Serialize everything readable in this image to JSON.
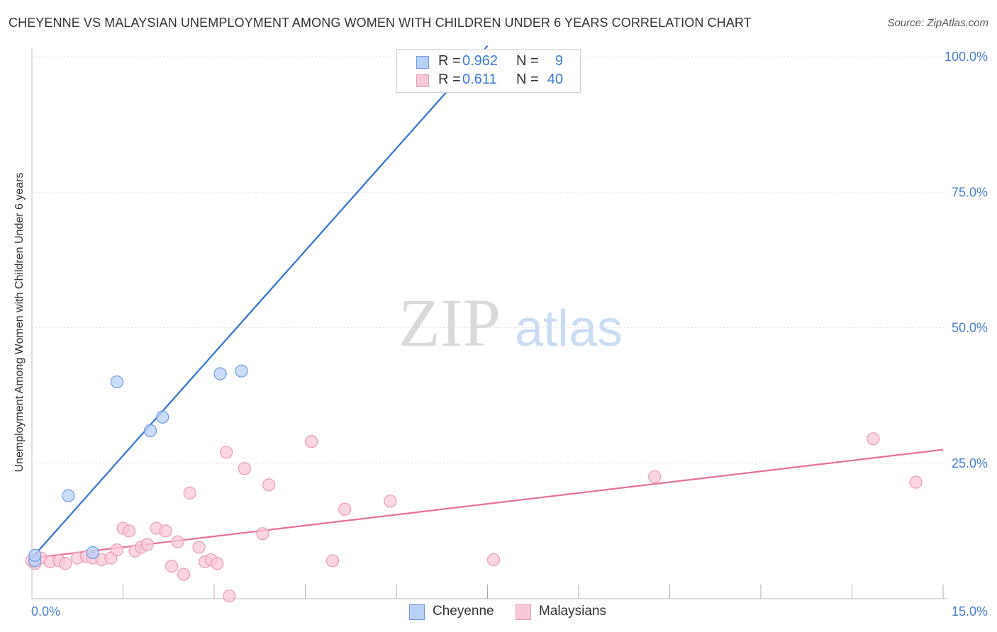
{
  "title": "CHEYENNE VS MALAYSIAN UNEMPLOYMENT AMONG WOMEN WITH CHILDREN UNDER 6 YEARS CORRELATION CHART",
  "source": "Source: ZipAtlas.com",
  "watermark": {
    "zip": "ZIP",
    "atlas": "atlas"
  },
  "colors": {
    "cheyenne_fill": "#b9d1f5",
    "cheyenne_stroke": "#6f9be0",
    "cheyenne_line": "#3173d3",
    "malaysian_fill": "#f8c8d7",
    "malaysian_stroke": "#e89bb4",
    "malaysian_line": "#e7709a",
    "axis_label": "#4a7fd0",
    "grid": "#dddddd"
  },
  "legend_top": {
    "rows": [
      {
        "series": "Cheyenne",
        "r_label": "R =",
        "r_value": "0.962",
        "n_label": "N =",
        "n_value": "9"
      },
      {
        "series": "Malaysians",
        "r_label": "R =",
        "r_value": "0.611",
        "n_label": "N =",
        "n_value": "40"
      }
    ]
  },
  "legend_bottom": {
    "items": [
      "Cheyenne",
      "Malaysians"
    ]
  },
  "chart_data": {
    "type": "scatter",
    "title": "CHEYENNE VS MALAYSIAN UNEMPLOYMENT AMONG WOMEN WITH CHILDREN UNDER 6 YEARS CORRELATION CHART",
    "xlabel": "",
    "ylabel": "Unemployment Among Women with Children Under 6 years",
    "xlim": [
      0,
      15
    ],
    "ylim": [
      0,
      100
    ],
    "x_tick_labels": [
      {
        "value": 0,
        "label": "0.0%"
      },
      {
        "value": 15,
        "label": "15.0%"
      }
    ],
    "y_tick_labels": [
      {
        "value": 25,
        "label": "25.0%"
      },
      {
        "value": 50,
        "label": "50.0%"
      },
      {
        "value": 75,
        "label": "75.0%"
      },
      {
        "value": 100,
        "label": "100.0%"
      }
    ],
    "x_minor_ticks": [
      1.5,
      3.0,
      4.5,
      6.0,
      7.5,
      9.0,
      10.5,
      12.0,
      13.5,
      15.0
    ],
    "y_gridlines": [
      25,
      50,
      75,
      100
    ],
    "series": [
      {
        "name": "Cheyenne",
        "points": [
          {
            "x": 0.05,
            "y": 7.0
          },
          {
            "x": 0.6,
            "y": 19.0
          },
          {
            "x": 1.0,
            "y": 8.5
          },
          {
            "x": 1.4,
            "y": 40.0
          },
          {
            "x": 1.95,
            "y": 31.0
          },
          {
            "x": 2.15,
            "y": 33.5
          },
          {
            "x": 3.1,
            "y": 41.5
          },
          {
            "x": 3.45,
            "y": 42.0
          },
          {
            "x": 0.05,
            "y": 8.0
          }
        ],
        "trendline": {
          "x": [
            0.0,
            7.5
          ],
          "y": [
            7.5,
            102.0
          ]
        }
      },
      {
        "name": "Malaysians",
        "points": [
          {
            "x": 0.05,
            "y": 6.5
          },
          {
            "x": 0.15,
            "y": 7.5
          },
          {
            "x": 0.3,
            "y": 6.8
          },
          {
            "x": 0.45,
            "y": 7.0
          },
          {
            "x": 0.55,
            "y": 6.5
          },
          {
            "x": 0.75,
            "y": 7.5
          },
          {
            "x": 0.9,
            "y": 7.8
          },
          {
            "x": 1.0,
            "y": 7.5
          },
          {
            "x": 1.15,
            "y": 7.2
          },
          {
            "x": 1.3,
            "y": 7.5
          },
          {
            "x": 1.4,
            "y": 9.0
          },
          {
            "x": 1.5,
            "y": 13.0
          },
          {
            "x": 1.6,
            "y": 12.5
          },
          {
            "x": 1.7,
            "y": 8.8
          },
          {
            "x": 1.8,
            "y": 9.5
          },
          {
            "x": 1.9,
            "y": 10.0
          },
          {
            "x": 2.05,
            "y": 13.0
          },
          {
            "x": 2.2,
            "y": 12.5
          },
          {
            "x": 2.3,
            "y": 6.0
          },
          {
            "x": 2.4,
            "y": 10.5
          },
          {
            "x": 2.5,
            "y": 4.5
          },
          {
            "x": 2.6,
            "y": 19.5
          },
          {
            "x": 2.75,
            "y": 9.5
          },
          {
            "x": 2.85,
            "y": 6.8
          },
          {
            "x": 2.95,
            "y": 7.2
          },
          {
            "x": 3.05,
            "y": 6.5
          },
          {
            "x": 3.2,
            "y": 27.0
          },
          {
            "x": 3.25,
            "y": 0.5
          },
          {
            "x": 3.5,
            "y": 24.0
          },
          {
            "x": 3.8,
            "y": 12.0
          },
          {
            "x": 3.9,
            "y": 21.0
          },
          {
            "x": 4.6,
            "y": 29.0
          },
          {
            "x": 4.95,
            "y": 7.0
          },
          {
            "x": 5.15,
            "y": 16.5
          },
          {
            "x": 5.9,
            "y": 18.0
          },
          {
            "x": 7.6,
            "y": 7.2
          },
          {
            "x": 10.25,
            "y": 22.5
          },
          {
            "x": 13.85,
            "y": 29.5
          },
          {
            "x": 14.55,
            "y": 21.5
          },
          {
            "x": 0.0,
            "y": 7.0
          }
        ],
        "trendline": {
          "x": [
            0.0,
            15.0
          ],
          "y": [
            7.5,
            27.5
          ]
        }
      }
    ]
  }
}
